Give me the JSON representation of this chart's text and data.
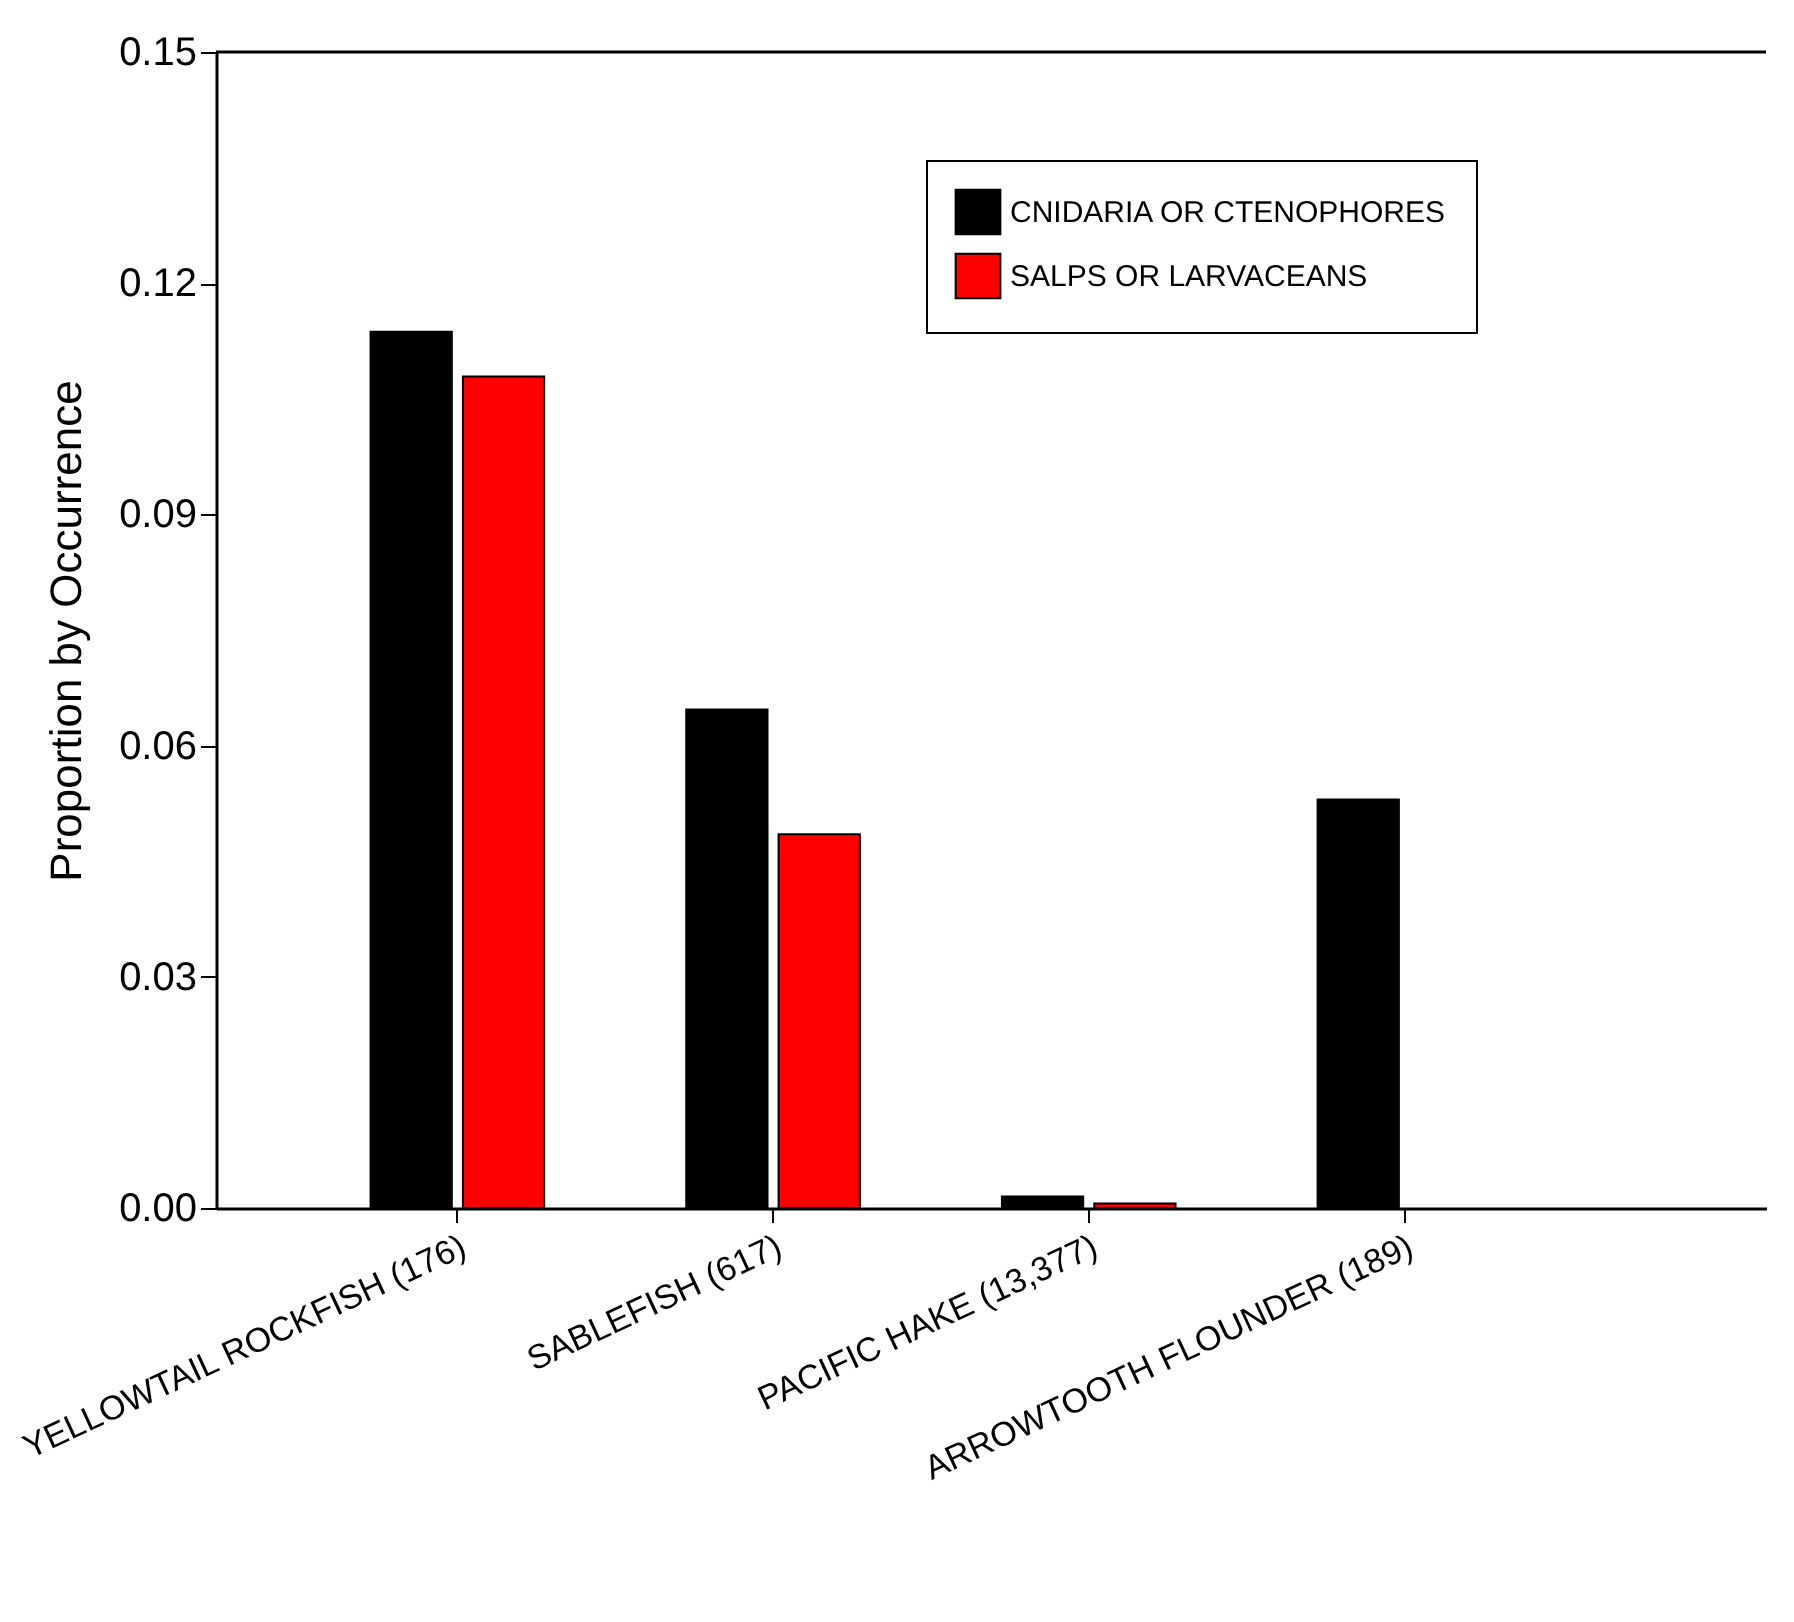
{
  "chart_data": {
    "type": "bar",
    "ylabel": "Proportion by Occurrence",
    "categories": [
      "YELLOWTAIL ROCKFISH (176)",
      "SABLEFISH (617)",
      "PACIFIC HAKE (13,377)",
      "ARROWTOOTH FLOUNDER (189)"
    ],
    "series": [
      {
        "name": "CNIDARIA OR CTENOPHORES",
        "color": "#000000",
        "values": [
          0.1137,
          0.0647,
          0.0015,
          0.053
        ]
      },
      {
        "name": "SALPS OR LARVACEANS",
        "color": "#ff0000",
        "values": [
          0.1079,
          0.0485,
          0.0006,
          null
        ]
      }
    ],
    "ylim": [
      0,
      0.15
    ],
    "yticks": [
      {
        "value": 0,
        "label": "0.00"
      },
      {
        "value": 0.03,
        "label": "0.03"
      },
      {
        "value": 0.06,
        "label": "0.06"
      },
      {
        "value": 0.09,
        "label": "0.09"
      },
      {
        "value": 0.12,
        "label": "0.12"
      },
      {
        "value": 0.15,
        "label": "0.15"
      }
    ],
    "legend": "top right"
  }
}
